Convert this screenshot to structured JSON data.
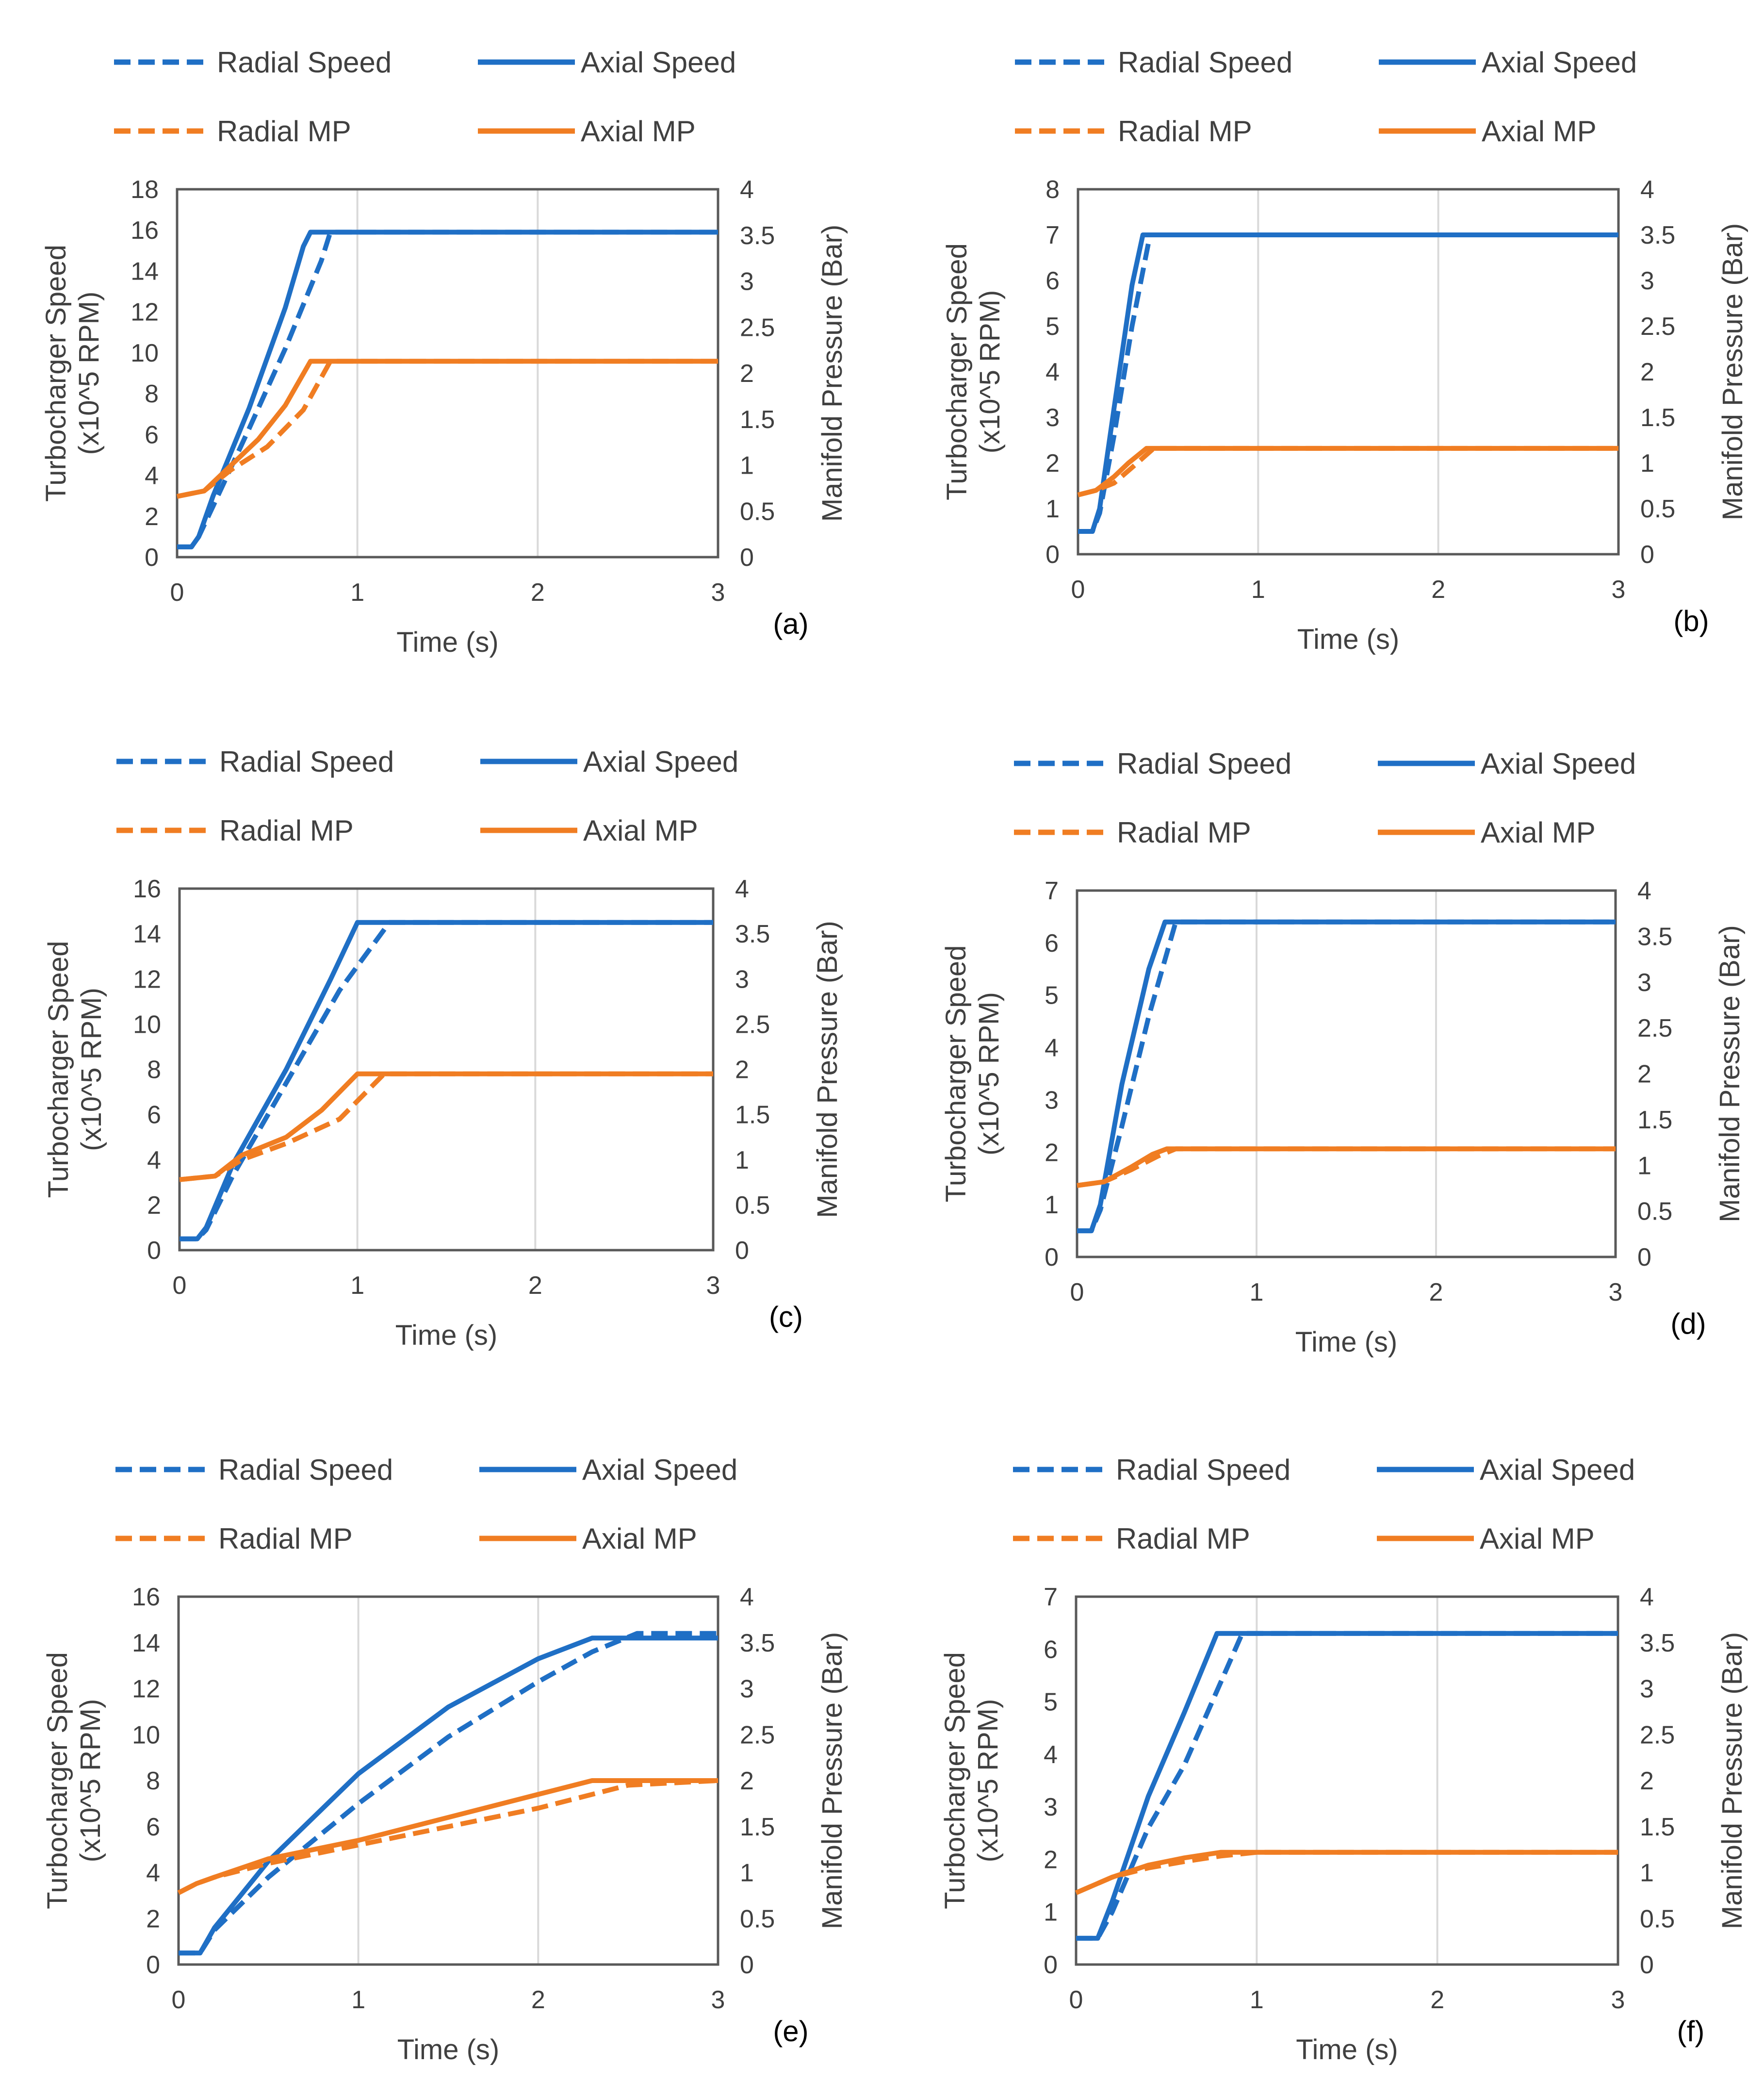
{
  "colors": {
    "speed": "#1F6FC5",
    "mp": "#F07D22",
    "axis": "#595959",
    "grid": "#D9D9D9",
    "text": "#404040"
  },
  "legend": {
    "radial_speed": "Radial Speed",
    "axial_speed": "Axial Speed",
    "radial_mp": "Radial MP",
    "axial_mp": "Axial MP"
  },
  "chart_data": [
    {
      "panel": "(a)",
      "type": "line",
      "title": "",
      "xlabel": "Time (s)",
      "ylabel": [
        "Turbocharger Speed",
        "(x10^5 RPM)"
      ],
      "y2label": "Manifold Pressure (Bar)",
      "xlim": [
        0,
        3
      ],
      "xticks": [
        0,
        1,
        2,
        3
      ],
      "ylim": [
        0,
        18
      ],
      "yticks": [
        0,
        2,
        4,
        6,
        8,
        10,
        12,
        14,
        16,
        18
      ],
      "y2lim": [
        0,
        4
      ],
      "y2ticks": [
        "0",
        "0.5",
        "1",
        "1.5",
        "2",
        "2.5",
        "3",
        "3.5",
        "4"
      ],
      "series": [
        {
          "name": "Radial Speed",
          "axis": "y",
          "style": "dashed",
          "color": "#1F6FC5",
          "x": [
            0,
            0.08,
            0.12,
            0.2,
            0.4,
            0.6,
            0.8,
            0.85,
            3
          ],
          "y": [
            0.5,
            0.5,
            1.0,
            2.5,
            6.3,
            10.2,
            14.5,
            15.9,
            15.9
          ]
        },
        {
          "name": "Axial Speed",
          "axis": "y",
          "style": "solid",
          "color": "#1F6FC5",
          "x": [
            0,
            0.08,
            0.12,
            0.2,
            0.4,
            0.6,
            0.7,
            0.74,
            3
          ],
          "y": [
            0.5,
            0.5,
            1.0,
            3.0,
            7.3,
            12.2,
            15.2,
            15.9,
            15.9
          ]
        },
        {
          "name": "Radial MP",
          "axis": "y2",
          "style": "dashed",
          "color": "#F07D22",
          "x": [
            0,
            0.15,
            0.3,
            0.5,
            0.7,
            0.85,
            3
          ],
          "y": [
            0.66,
            0.72,
            0.95,
            1.2,
            1.6,
            2.13,
            2.13
          ]
        },
        {
          "name": "Axial MP",
          "axis": "y2",
          "style": "solid",
          "color": "#F07D22",
          "x": [
            0,
            0.15,
            0.3,
            0.45,
            0.6,
            0.74,
            3
          ],
          "y": [
            0.66,
            0.72,
            1.0,
            1.28,
            1.65,
            2.13,
            2.13
          ]
        }
      ]
    },
    {
      "panel": "(b)",
      "type": "line",
      "title": "",
      "xlabel": "Time (s)",
      "ylabel": [
        "Turbocharger Speed",
        "(x10^5 RPM)"
      ],
      "y2label": "Manifold Pressure (Bar)",
      "xlim": [
        0,
        3
      ],
      "xticks": [
        0,
        1,
        2,
        3
      ],
      "ylim": [
        0,
        8
      ],
      "yticks": [
        0,
        1,
        2,
        3,
        4,
        5,
        6,
        7,
        8
      ],
      "y2lim": [
        0,
        4
      ],
      "y2ticks": [
        "0",
        "0.5",
        "1",
        "1.5",
        "2",
        "2.5",
        "3",
        "3.5",
        "4"
      ],
      "series": [
        {
          "name": "Radial Speed",
          "axis": "y",
          "style": "dashed",
          "color": "#1F6FC5",
          "x": [
            0,
            0.08,
            0.12,
            0.2,
            0.3,
            0.4,
            3
          ],
          "y": [
            0.5,
            0.5,
            0.9,
            2.6,
            5.0,
            7.0,
            7.0
          ]
        },
        {
          "name": "Axial Speed",
          "axis": "y",
          "style": "solid",
          "color": "#1F6FC5",
          "x": [
            0,
            0.08,
            0.12,
            0.2,
            0.3,
            0.36,
            3
          ],
          "y": [
            0.5,
            0.5,
            1.0,
            3.2,
            5.9,
            7.0,
            7.0
          ]
        },
        {
          "name": "Radial MP",
          "axis": "y2",
          "style": "dashed",
          "color": "#F07D22",
          "x": [
            0,
            0.1,
            0.2,
            0.3,
            0.42,
            3
          ],
          "y": [
            0.65,
            0.7,
            0.78,
            0.95,
            1.16,
            1.16
          ]
        },
        {
          "name": "Axial MP",
          "axis": "y2",
          "style": "solid",
          "color": "#F07D22",
          "x": [
            0,
            0.1,
            0.2,
            0.28,
            0.38,
            3
          ],
          "y": [
            0.65,
            0.7,
            0.85,
            1.0,
            1.16,
            1.16
          ]
        }
      ]
    },
    {
      "panel": "(c)",
      "type": "line",
      "title": "",
      "xlabel": "Time (s)",
      "ylabel": [
        "Turbocharger Speed",
        "(x10^5 RPM)"
      ],
      "y2label": "Manifold Pressure (Bar)",
      "xlim": [
        0,
        3
      ],
      "xticks": [
        0,
        1,
        2,
        3
      ],
      "ylim": [
        0,
        16
      ],
      "yticks": [
        0,
        2,
        4,
        6,
        8,
        10,
        12,
        14,
        16
      ],
      "y2lim": [
        0,
        4
      ],
      "y2ticks": [
        "0",
        "0.5",
        "1",
        "1.5",
        "2",
        "2.5",
        "3",
        "3.5",
        "4"
      ],
      "series": [
        {
          "name": "Radial Speed",
          "axis": "y",
          "style": "dashed",
          "color": "#1F6FC5",
          "x": [
            0,
            0.1,
            0.15,
            0.3,
            0.6,
            0.9,
            1.18,
            3
          ],
          "y": [
            0.5,
            0.5,
            0.9,
            3.3,
            7.4,
            11.5,
            14.5,
            14.5
          ]
        },
        {
          "name": "Axial Speed",
          "axis": "y",
          "style": "solid",
          "color": "#1F6FC5",
          "x": [
            0,
            0.1,
            0.15,
            0.3,
            0.6,
            0.85,
            1.0,
            3
          ],
          "y": [
            0.5,
            0.5,
            1.0,
            3.8,
            8.0,
            12.0,
            14.5,
            14.5
          ]
        },
        {
          "name": "Radial MP",
          "axis": "y2",
          "style": "dashed",
          "color": "#F07D22",
          "x": [
            0,
            0.2,
            0.35,
            0.6,
            0.9,
            1.15,
            3
          ],
          "y": [
            0.78,
            0.82,
            1.0,
            1.18,
            1.45,
            1.95,
            1.95
          ]
        },
        {
          "name": "Axial MP",
          "axis": "y2",
          "style": "solid",
          "color": "#F07D22",
          "x": [
            0,
            0.2,
            0.35,
            0.6,
            0.8,
            1.0,
            3
          ],
          "y": [
            0.78,
            0.82,
            1.05,
            1.25,
            1.55,
            1.95,
            1.95
          ]
        }
      ]
    },
    {
      "panel": "(d)",
      "type": "line",
      "title": "",
      "xlabel": "Time (s)",
      "ylabel": [
        "Turbocharger Speed",
        "(x10^5 RPM)"
      ],
      "y2label": "Manifold Pressure (Bar)",
      "xlim": [
        0,
        3
      ],
      "xticks": [
        0,
        1,
        2,
        3
      ],
      "ylim": [
        0,
        7
      ],
      "yticks": [
        0,
        1,
        2,
        3,
        4,
        5,
        6,
        7
      ],
      "y2lim": [
        0,
        4
      ],
      "y2ticks": [
        "0",
        "0.5",
        "1",
        "1.5",
        "2",
        "2.5",
        "3",
        "3.5",
        "4"
      ],
      "series": [
        {
          "name": "Radial Speed",
          "axis": "y",
          "style": "dashed",
          "color": "#1F6FC5",
          "x": [
            0,
            0.08,
            0.13,
            0.25,
            0.4,
            0.55,
            3
          ],
          "y": [
            0.5,
            0.5,
            0.9,
            2.5,
            4.6,
            6.4,
            6.4
          ]
        },
        {
          "name": "Axial Speed",
          "axis": "y",
          "style": "solid",
          "color": "#1F6FC5",
          "x": [
            0,
            0.08,
            0.13,
            0.25,
            0.4,
            0.49,
            3
          ],
          "y": [
            0.5,
            0.5,
            1.0,
            3.3,
            5.5,
            6.4,
            6.4
          ]
        },
        {
          "name": "Radial MP",
          "axis": "y2",
          "style": "dashed",
          "color": "#F07D22",
          "x": [
            0,
            0.15,
            0.3,
            0.45,
            0.55,
            3
          ],
          "y": [
            0.78,
            0.82,
            0.95,
            1.1,
            1.18,
            1.18
          ]
        },
        {
          "name": "Axial MP",
          "axis": "y2",
          "style": "solid",
          "color": "#F07D22",
          "x": [
            0,
            0.15,
            0.3,
            0.42,
            0.5,
            3
          ],
          "y": [
            0.78,
            0.82,
            0.98,
            1.12,
            1.18,
            1.18
          ]
        }
      ]
    },
    {
      "panel": "(e)",
      "type": "line",
      "title": "",
      "xlabel": "Time (s)",
      "ylabel": [
        "Turbocharger Speed",
        "(x10^5 RPM)"
      ],
      "y2label": "Manifold Pressure (Bar)",
      "xlim": [
        0,
        3
      ],
      "xticks": [
        0,
        1,
        2,
        3
      ],
      "ylim": [
        0,
        16
      ],
      "yticks": [
        0,
        2,
        4,
        6,
        8,
        10,
        12,
        14,
        16
      ],
      "y2lim": [
        0,
        4
      ],
      "y2ticks": [
        "0",
        "0.5",
        "1",
        "1.5",
        "2",
        "2.5",
        "3",
        "3.5",
        "4"
      ],
      "series": [
        {
          "name": "Radial Speed",
          "axis": "y",
          "style": "dashed",
          "color": "#1F6FC5",
          "x": [
            0,
            0.12,
            0.2,
            0.5,
            1.0,
            1.5,
            2.0,
            2.3,
            2.55,
            3
          ],
          "y": [
            0.5,
            0.5,
            1.5,
            3.8,
            7.0,
            9.9,
            12.3,
            13.6,
            14.4,
            14.4
          ]
        },
        {
          "name": "Axial Speed",
          "axis": "y",
          "style": "solid",
          "color": "#1F6FC5",
          "x": [
            0,
            0.12,
            0.2,
            0.5,
            1.0,
            1.5,
            2.0,
            2.3,
            3
          ],
          "y": [
            0.5,
            0.5,
            1.6,
            4.5,
            8.3,
            11.2,
            13.3,
            14.2,
            14.2
          ]
        },
        {
          "name": "Radial MP",
          "axis": "y2",
          "style": "dashed",
          "color": "#F07D22",
          "x": [
            0,
            0.1,
            0.2,
            0.5,
            1.0,
            1.5,
            2.0,
            2.5,
            3
          ],
          "y": [
            0.78,
            0.88,
            0.95,
            1.1,
            1.3,
            1.5,
            1.7,
            1.95,
            2.0
          ]
        },
        {
          "name": "Axial MP",
          "axis": "y2",
          "style": "solid",
          "color": "#F07D22",
          "x": [
            0,
            0.1,
            0.2,
            0.5,
            1.0,
            1.5,
            2.0,
            2.3,
            3
          ],
          "y": [
            0.78,
            0.88,
            0.95,
            1.15,
            1.35,
            1.6,
            1.85,
            2.0,
            2.0
          ]
        }
      ]
    },
    {
      "panel": "(f)",
      "type": "line",
      "title": "",
      "xlabel": "Time (s)",
      "ylabel": [
        "Turbocharger Speed",
        "(x10^5 RPM)"
      ],
      "y2label": "Manifold Pressure (Bar)",
      "xlim": [
        0,
        3
      ],
      "xticks": [
        0,
        1,
        2,
        3
      ],
      "ylim": [
        0,
        7
      ],
      "yticks": [
        0,
        1,
        2,
        3,
        4,
        5,
        6,
        7
      ],
      "y2lim": [
        0,
        4
      ],
      "y2ticks": [
        "0",
        "0.5",
        "1",
        "1.5",
        "2",
        "2.5",
        "3",
        "3.5",
        "4"
      ],
      "series": [
        {
          "name": "Radial Speed",
          "axis": "y",
          "style": "dashed",
          "color": "#1F6FC5",
          "x": [
            0,
            0.12,
            0.2,
            0.4,
            0.6,
            0.92,
            3
          ],
          "y": [
            0.5,
            0.5,
            1.0,
            2.6,
            3.8,
            6.3,
            6.3
          ]
        },
        {
          "name": "Axial Speed",
          "axis": "y",
          "style": "solid",
          "color": "#1F6FC5",
          "x": [
            0,
            0.12,
            0.2,
            0.4,
            0.6,
            0.78,
            3
          ],
          "y": [
            0.5,
            0.5,
            1.2,
            3.2,
            4.8,
            6.3,
            6.3
          ]
        },
        {
          "name": "Radial MP",
          "axis": "y2",
          "style": "dashed",
          "color": "#F07D22",
          "x": [
            0,
            0.2,
            0.4,
            0.6,
            0.8,
            1.0,
            3
          ],
          "y": [
            0.78,
            0.95,
            1.05,
            1.12,
            1.18,
            1.22,
            1.22
          ]
        },
        {
          "name": "Axial MP",
          "axis": "y2",
          "style": "solid",
          "color": "#F07D22",
          "x": [
            0,
            0.2,
            0.4,
            0.6,
            0.8,
            3
          ],
          "y": [
            0.78,
            0.95,
            1.08,
            1.16,
            1.22,
            1.22
          ]
        }
      ]
    }
  ]
}
